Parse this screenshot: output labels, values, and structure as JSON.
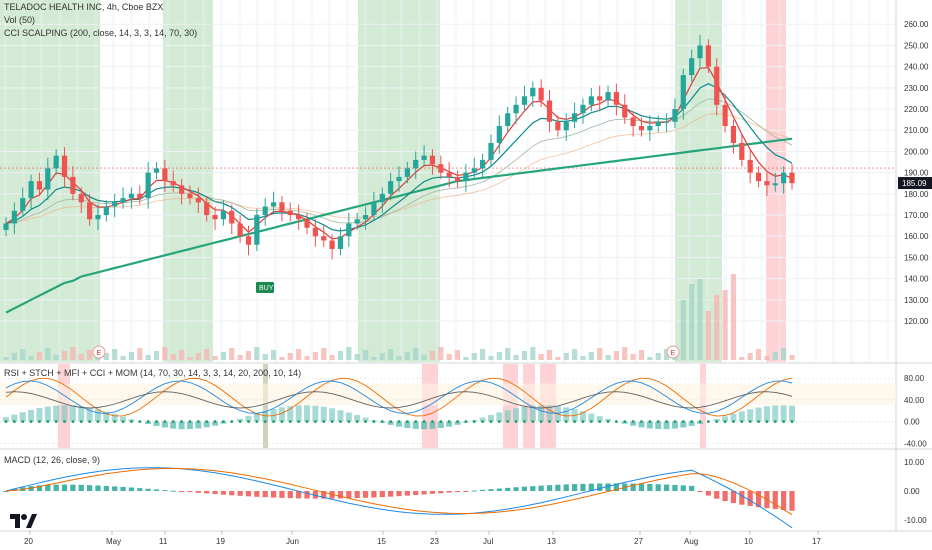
{
  "title": "TELADOC HEALTH INC, 4h, Cboe BZX",
  "legends": {
    "vol": "Vol (50)",
    "cci": "CCI SCALPING (200, close, 14, 3, 3, 14, 70, 30)",
    "rsi": "RSI + STCH + MFI + CCI + MOM (14, 70, 30, 14, 3, 3, 14, 20, 200, 10, 14)",
    "macd": "MACD (12, 26, close, 9)"
  },
  "price_axis": [
    "260.00",
    "250.00",
    "240.00",
    "230.00",
    "220.00",
    "210.00",
    "200.00",
    "190.00",
    "180.00",
    "170.00",
    "160.00",
    "150.00",
    "140.00",
    "130.00",
    "120.00"
  ],
  "current_price": "185.09",
  "rsi_axis": [
    "80.00",
    "40.00",
    "0.00",
    "-40.00"
  ],
  "macd_axis": [
    "10.00",
    "0.00",
    "-10.00"
  ],
  "x_axis": [
    "20",
    "May",
    "11",
    "19",
    "Jun",
    "15",
    "23",
    "Jul",
    "13",
    "27",
    "Aug",
    "10",
    "17"
  ],
  "buy_label": "BUY",
  "earnings_marker": "E",
  "colors": {
    "up": "#26a69a",
    "down": "#ef5350",
    "ema_fast": "#e53935",
    "ema_slow": "#0d8a8a",
    "ma200": "#26a67a",
    "green_zone": "#c8e6c9",
    "red_zone": "#ffcdd2"
  },
  "chart_data": {
    "type": "candlestick",
    "symbol": "TELADOC HEALTH INC",
    "interval": "4h",
    "exchange": "Cboe BZX",
    "ylim": [
      110,
      265
    ],
    "x_ticks": [
      "20",
      "May",
      "11",
      "19",
      "Jun",
      "15",
      "23",
      "Jul",
      "13",
      "27",
      "Aug",
      "10",
      "17"
    ],
    "close": [
      166,
      172,
      178,
      186,
      182,
      192,
      198,
      188,
      180,
      176,
      168,
      170,
      174,
      176,
      178,
      180,
      178,
      190,
      192,
      186,
      184,
      180,
      178,
      176,
      170,
      168,
      172,
      166,
      160,
      156,
      170,
      174,
      176,
      172,
      170,
      168,
      164,
      160,
      158,
      154,
      160,
      166,
      168,
      170,
      176,
      180,
      186,
      188,
      192,
      196,
      198,
      194,
      190,
      188,
      186,
      190,
      192,
      196,
      204,
      212,
      218,
      222,
      226,
      230,
      224,
      214,
      210,
      214,
      218,
      222,
      226,
      224,
      228,
      222,
      216,
      212,
      210,
      212,
      214,
      214,
      220,
      236,
      244,
      250,
      240,
      222,
      212,
      204,
      196,
      190,
      186,
      184,
      185,
      190,
      185
    ],
    "ma200": [
      124,
      126,
      128,
      130,
      132,
      134,
      136,
      138,
      139,
      141,
      142,
      143,
      144,
      145,
      146,
      147,
      148,
      149,
      150,
      151,
      152,
      153,
      154,
      155,
      156,
      157,
      158,
      159,
      160,
      161,
      162,
      163,
      164,
      165,
      166,
      167,
      168,
      169,
      170,
      171,
      172,
      173,
      174,
      175,
      176,
      177,
      178,
      179,
      180,
      181,
      182,
      183,
      184,
      185,
      186,
      186.5,
      187,
      187.5,
      188,
      188.5,
      189,
      189.5,
      190,
      190.5,
      191,
      191.5,
      192,
      192.5,
      193,
      193.5,
      194,
      194.5,
      195,
      195.5,
      196,
      196.5,
      197,
      197.5,
      198,
      198.5,
      199,
      199.5,
      200,
      200.5,
      201,
      201.5,
      202,
      202.5,
      203,
      203.5,
      204,
      204.5,
      205,
      205.5,
      206
    ],
    "current_price": 185.09,
    "macd_ylim": [
      -12,
      12
    ],
    "rsi_ylim": [
      -45,
      95
    ]
  }
}
